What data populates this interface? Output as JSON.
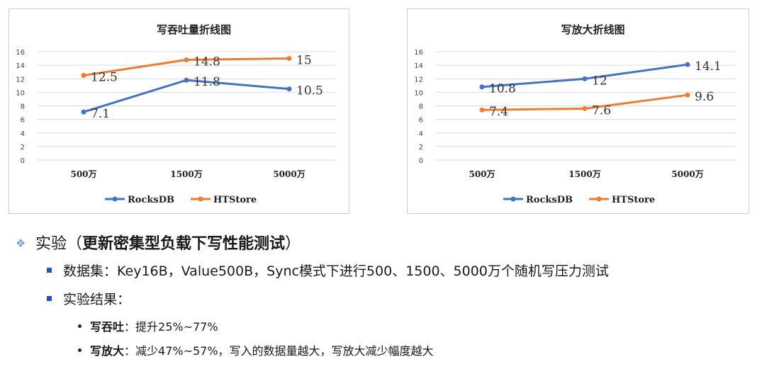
{
  "colors": {
    "rocksdb": "#4472C4",
    "htstore": "#ED7D31"
  },
  "chart_data": [
    {
      "type": "line",
      "title": "写吞吐量折线图",
      "categories": [
        "500万",
        "1500万",
        "5000万"
      ],
      "y_ticks": [
        "0",
        "2",
        "4",
        "6",
        "8",
        "10",
        "12",
        "14",
        "16"
      ],
      "ylim": [
        0,
        16
      ],
      "grid": true,
      "legend": "bottom",
      "series": [
        {
          "name": "RocksDB",
          "values": [
            7.1,
            11.8,
            10.5
          ],
          "labels": [
            "7.1",
            "11.8",
            "10.5"
          ]
        },
        {
          "name": "HTStore",
          "values": [
            12.5,
            14.8,
            15
          ],
          "labels": [
            "12.5",
            "14.8",
            "15"
          ]
        }
      ]
    },
    {
      "type": "line",
      "title": "写放大折线图",
      "categories": [
        "500万",
        "1500万",
        "5000万"
      ],
      "y_ticks": [
        "0",
        "2",
        "4",
        "6",
        "8",
        "10",
        "12",
        "14",
        "16"
      ],
      "ylim": [
        0,
        16
      ],
      "grid": true,
      "legend": "bottom",
      "series": [
        {
          "name": "RocksDB",
          "values": [
            10.8,
            12,
            14.1
          ],
          "labels": [
            "10.8",
            "12",
            "14.1"
          ]
        },
        {
          "name": "HTStore",
          "values": [
            7.4,
            7.6,
            9.6
          ],
          "labels": [
            "7.4",
            "7.6",
            "9.6"
          ]
        }
      ]
    }
  ],
  "notes": {
    "heading_prefix": "实验（",
    "heading_bold": "更新密集型负载下写性能测试",
    "heading_suffix": "）",
    "bullet1": "数据集：Key16B，Value500B，Sync模式下进行500、1500、5000万个随机写压力测试",
    "bullet2": "实验结果：",
    "sub1_bold": "写吞吐",
    "sub1_text": "：提升25%~77%",
    "sub2_bold": "写放大",
    "sub2_text": "：减少47%~57%，写入的数据量越大，写放大减少幅度越大"
  }
}
